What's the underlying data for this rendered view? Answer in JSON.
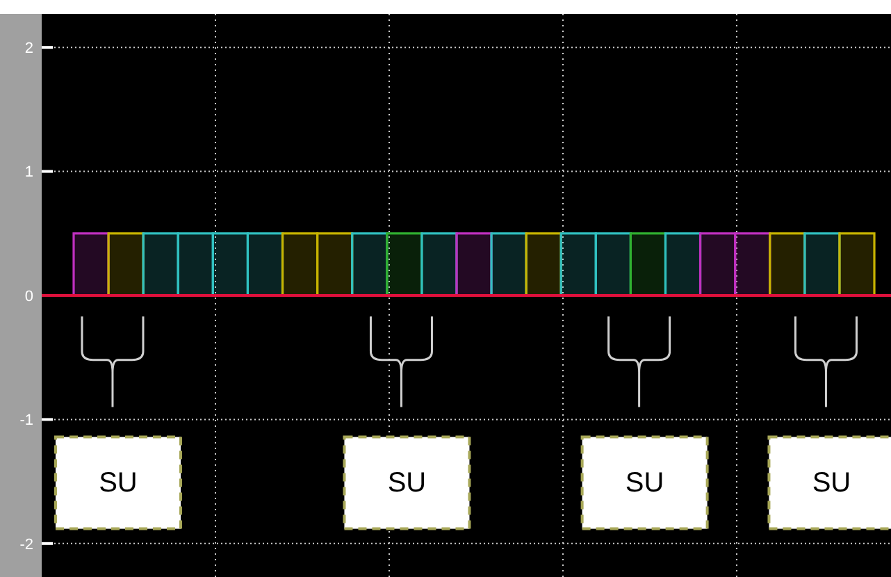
{
  "chart_data": {
    "type": "bar",
    "categories": [
      null,
      null,
      null,
      null,
      null,
      null,
      null,
      null,
      null,
      null,
      null,
      null,
      null,
      null,
      null,
      null,
      null,
      null,
      null,
      null,
      null,
      null,
      null
    ],
    "values": [
      0.5,
      0.5,
      0.5,
      0.5,
      0.5,
      0.5,
      0.5,
      0.5,
      0.5,
      0.5,
      0.5,
      0.5,
      0.5,
      0.5,
      0.5,
      0.5,
      0.5,
      0.5,
      0.5,
      0.5,
      0.5,
      0.5,
      0.5
    ],
    "colors": [
      "#c030c0",
      "#c8b400",
      "#30c0c0",
      "#30c0c0",
      "#30c0c0",
      "#30c0c0",
      "#c8b400",
      "#c8b400",
      "#30c0c0",
      "#30b030",
      "#30c0c0",
      "#c030c0",
      "#30c0c0",
      "#c8b400",
      "#30c0c0",
      "#30c0c0",
      "#30b030",
      "#30c0c0",
      "#c030c0",
      "#c030c0",
      "#c8b400",
      "#30c0c0",
      "#c8b400"
    ],
    "ylim": [
      -2.27,
      2.27
    ],
    "yticks": [
      2,
      1,
      0,
      -1,
      -2
    ],
    "grid": true,
    "ref_lines": [
      {
        "axis": "y",
        "value": 0,
        "label": null,
        "color": "#e0103c"
      }
    ],
    "annotations": [
      "SU",
      "SU",
      "SU",
      "SU"
    ]
  }
}
